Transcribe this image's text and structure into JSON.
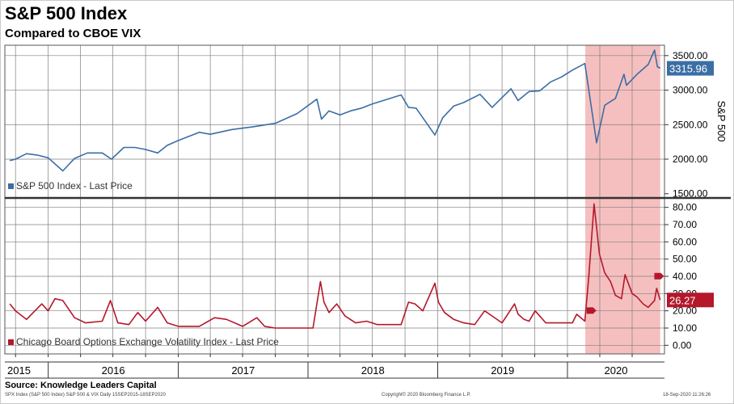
{
  "title": "S&P 500 Index",
  "subtitle": "Compared to CBOE VIX",
  "source": "Source: Knowledge Leaders Capital",
  "footer": {
    "left": "SPX Index (S&P 500 Index) S&P 500 & VIX  Daily 15SEP2015-18SEP2020",
    "center": "Copyright© 2020 Bloomberg Finance L.P.",
    "right": "18-Sep-2020 11:26:26"
  },
  "colors": {
    "spx": "#3a6ea5",
    "vix": "#b5172b",
    "shade": "#f4b4b4",
    "grid": "#7f7f7f"
  },
  "chart_data": [
    {
      "type": "line",
      "ylabel": "S&P 500",
      "yticks": [
        "3500.00",
        "3000.00",
        "2500.00",
        "2000.00",
        "1500.00"
      ],
      "ylim": [
        1450,
        3650
      ],
      "legend": "S&P 500 Index - Last Price",
      "last_value": "3315.96",
      "series": [
        {
          "name": "S&P 500 Index - Last Price",
          "x": [
            "2015-09-15",
            "2015-10-01",
            "2015-11-01",
            "2015-12-01",
            "2016-01-01",
            "2016-02-11",
            "2016-03-15",
            "2016-04-20",
            "2016-06-01",
            "2016-06-27",
            "2016-08-01",
            "2016-09-01",
            "2016-10-01",
            "2016-11-04",
            "2016-12-01",
            "2017-01-01",
            "2017-03-01",
            "2017-04-01",
            "2017-06-01",
            "2017-08-01",
            "2017-10-01",
            "2017-12-01",
            "2018-01-26",
            "2018-02-08",
            "2018-03-01",
            "2018-04-01",
            "2018-05-01",
            "2018-06-01",
            "2018-07-01",
            "2018-08-01",
            "2018-09-20",
            "2018-10-11",
            "2018-11-01",
            "2018-12-24",
            "2019-01-15",
            "2019-02-15",
            "2019-03-15",
            "2019-04-30",
            "2019-06-03",
            "2019-07-26",
            "2019-08-15",
            "2019-09-15",
            "2019-10-15",
            "2019-11-15",
            "2019-12-15",
            "2020-01-15",
            "2020-02-19",
            "2020-03-01",
            "2020-03-23",
            "2020-04-15",
            "2020-05-15",
            "2020-06-08",
            "2020-06-15",
            "2020-07-15",
            "2020-08-15",
            "2020-09-02",
            "2020-09-10",
            "2020-09-18"
          ],
          "values": [
            1980,
            2000,
            2080,
            2060,
            2020,
            1830,
            2010,
            2090,
            2090,
            2000,
            2170,
            2170,
            2140,
            2090,
            2200,
            2270,
            2390,
            2360,
            2430,
            2470,
            2520,
            2660,
            2870,
            2580,
            2700,
            2640,
            2700,
            2740,
            2800,
            2850,
            2930,
            2750,
            2740,
            2350,
            2600,
            2770,
            2820,
            2940,
            2750,
            3020,
            2850,
            2980,
            2990,
            3120,
            3190,
            3290,
            3386,
            3000,
            2237,
            2780,
            2880,
            3230,
            3070,
            3230,
            3370,
            3580,
            3340,
            3316
          ]
        }
      ]
    },
    {
      "type": "line",
      "yticks": [
        "80.00",
        "70.00",
        "60.00",
        "50.00",
        "40.00",
        "30.00",
        "20.00",
        "10.00",
        "0.00"
      ],
      "ylim": [
        -5,
        85
      ],
      "legend": "Chicago Board Options Exchange Volatility Index - Last Price",
      "last_value": "26.27",
      "series": [
        {
          "name": "Chicago Board Options Exchange Volatility Index - Last Price",
          "x": [
            "2015-09-15",
            "2015-10-01",
            "2015-11-01",
            "2015-12-14",
            "2016-01-01",
            "2016-01-20",
            "2016-02-11",
            "2016-03-15",
            "2016-04-15",
            "2016-06-01",
            "2016-06-24",
            "2016-07-15",
            "2016-08-15",
            "2016-09-09",
            "2016-10-01",
            "2016-11-04",
            "2016-12-01",
            "2017-01-01",
            "2017-03-01",
            "2017-04-13",
            "2017-05-17",
            "2017-07-01",
            "2017-08-10",
            "2017-09-01",
            "2017-10-01",
            "2017-11-01",
            "2017-12-01",
            "2018-01-15",
            "2018-02-05",
            "2018-02-15",
            "2018-03-01",
            "2018-03-23",
            "2018-04-15",
            "2018-05-15",
            "2018-06-15",
            "2018-07-15",
            "2018-08-15",
            "2018-09-20",
            "2018-10-11",
            "2018-10-29",
            "2018-11-20",
            "2018-12-24",
            "2019-01-03",
            "2019-01-20",
            "2019-02-15",
            "2019-03-15",
            "2019-04-15",
            "2019-05-13",
            "2019-06-03",
            "2019-07-01",
            "2019-08-05",
            "2019-08-15",
            "2019-09-01",
            "2019-09-15",
            "2019-10-02",
            "2019-11-01",
            "2019-12-01",
            "2020-01-15",
            "2020-01-27",
            "2020-02-19",
            "2020-03-01",
            "2020-03-16",
            "2020-03-31",
            "2020-04-15",
            "2020-05-01",
            "2020-05-15",
            "2020-06-01",
            "2020-06-11",
            "2020-07-01",
            "2020-07-15",
            "2020-08-01",
            "2020-08-15",
            "2020-09-02",
            "2020-09-08",
            "2020-09-18"
          ],
          "values": [
            24,
            20,
            15,
            24,
            20,
            27,
            26,
            16,
            13,
            14,
            26,
            13,
            12,
            19,
            14,
            22,
            13,
            11,
            11,
            16,
            15,
            11,
            16,
            11,
            10,
            10,
            10,
            10,
            37,
            25,
            19,
            24,
            17,
            13,
            14,
            12,
            12,
            12,
            25,
            24,
            20,
            36,
            25,
            19,
            15,
            13,
            12,
            20,
            17,
            13,
            24,
            18,
            15,
            14,
            20,
            13,
            13,
            13,
            18,
            14,
            40,
            82,
            53,
            42,
            37,
            29,
            27,
            41,
            30,
            28,
            24,
            22,
            26,
            33,
            26.27
          ]
        }
      ]
    }
  ],
  "x_axis": {
    "years": [
      "2015",
      "2016",
      "2017",
      "2018",
      "2019",
      "2020"
    ]
  },
  "shaded_period": {
    "start": "2020-02-20",
    "end": "2020-09-18"
  }
}
